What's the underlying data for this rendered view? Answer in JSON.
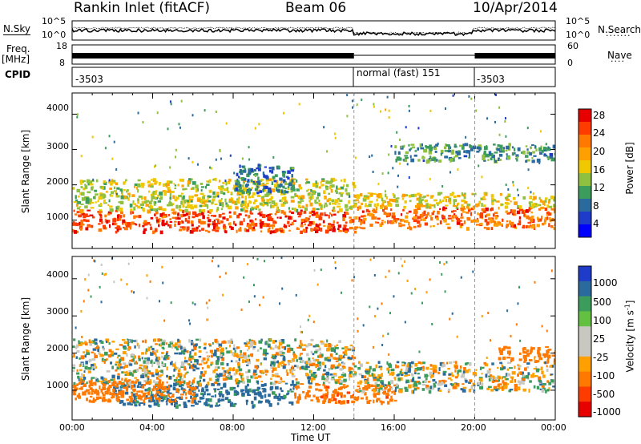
{
  "header": {
    "station": "Rankin Inlet (fitACF)",
    "beam": "Beam 06",
    "date": "10/Apr/2014"
  },
  "top_panels": {
    "nsky_label": "N.Sky",
    "nsearch_label": "N.Search",
    "nsky_ticks": [
      "10^5",
      "10^0"
    ],
    "nsearch_ticks": [
      "10^5",
      "10^0"
    ],
    "freq_label_1": "Freq.",
    "freq_label_2": "[MHz]",
    "freq_ticks": [
      "18",
      "8"
    ],
    "nave_label": "Nave",
    "nave_ticks": [
      "60",
      "0"
    ],
    "cpid_label": "CPID",
    "cpid_segments": [
      {
        "label": "-3503",
        "start_hour": 0,
        "end_hour": 14
      },
      {
        "label": "normal (fast) 151",
        "start_hour": 14,
        "end_hour": 20
      },
      {
        "label": "-3503",
        "start_hour": 20,
        "end_hour": 24
      }
    ]
  },
  "colorbars": {
    "power": {
      "title": "Power [dB]",
      "ticks": [
        "28",
        "24",
        "20",
        "16",
        "12",
        "8",
        "4"
      ],
      "colors": [
        "#e60000",
        "#ff3c00",
        "#ff7800",
        "#ffa000",
        "#f0c800",
        "#90c040",
        "#3c9c5c",
        "#2a6a9c",
        "#1e3cc8",
        "#0000ff"
      ]
    },
    "velocity": {
      "title": "Velocity [m s",
      "title_sup": "-1",
      "title_end": "]",
      "ticks": [
        "1000",
        "500",
        "100",
        "25",
        "-25",
        "-100",
        "-500",
        "-1000"
      ],
      "colors": [
        "#1e3cc8",
        "#2a6a9c",
        "#3c9c5c",
        "#64c040",
        "#c8c8c0",
        "#c8c8c0",
        "#ffa000",
        "#ff7800",
        "#ff3c00",
        "#e60000"
      ]
    }
  },
  "chart_data": [
    {
      "type": "heatmap",
      "name": "Power",
      "xlabel": "Time UT",
      "ylabel": "Slant Range [km]",
      "xlim": [
        0,
        24
      ],
      "ylim": [
        200,
        4600
      ],
      "x_ticks": [
        "00:00",
        "04:00",
        "08:00",
        "12:00",
        "16:00",
        "20:00",
        "00:00"
      ],
      "y_ticks": [
        1000,
        2000,
        3000,
        4000
      ],
      "bands": [
        {
          "x": [
            0,
            14
          ],
          "range_km": [
            700,
            1300
          ],
          "value_db": 28
        },
        {
          "x": [
            0,
            14
          ],
          "range_km": [
            1300,
            2200
          ],
          "value_db": 16
        },
        {
          "x": [
            8,
            11
          ],
          "range_km": [
            1800,
            2600
          ],
          "value_db": 8
        },
        {
          "x": [
            14,
            24
          ],
          "range_km": [
            800,
            1400
          ],
          "value_db": 26
        },
        {
          "x": [
            14,
            24
          ],
          "range_km": [
            1400,
            1800
          ],
          "value_db": 18
        },
        {
          "x": [
            16,
            24
          ],
          "range_km": [
            2700,
            3200
          ],
          "value_db": 10
        }
      ]
    },
    {
      "type": "heatmap",
      "name": "Velocity",
      "xlabel": "Time UT",
      "ylabel": "Slant Range [km]",
      "xlim": [
        0,
        24
      ],
      "ylim": [
        200,
        4600
      ],
      "x_ticks": [
        "00:00",
        "04:00",
        "08:00",
        "12:00",
        "16:00",
        "20:00",
        "00:00"
      ],
      "y_ticks": [
        1000,
        2000,
        3000,
        4000
      ],
      "bands": [
        {
          "x": [
            2,
            11
          ],
          "range_km": [
            600,
            1200
          ],
          "value_ms": 200
        },
        {
          "x": [
            0,
            14
          ],
          "range_km": [
            1200,
            2400
          ],
          "value_ms": 0
        },
        {
          "x": [
            0,
            6
          ],
          "range_km": [
            700,
            1300
          ],
          "value_ms": -300
        },
        {
          "x": [
            11,
            16
          ],
          "range_km": [
            700,
            1200
          ],
          "value_ms": -400
        },
        {
          "x": [
            14,
            24
          ],
          "range_km": [
            1000,
            1800
          ],
          "value_ms": 0
        },
        {
          "x": [
            21,
            24
          ],
          "range_km": [
            1800,
            2200
          ],
          "value_ms": -300
        }
      ]
    }
  ]
}
